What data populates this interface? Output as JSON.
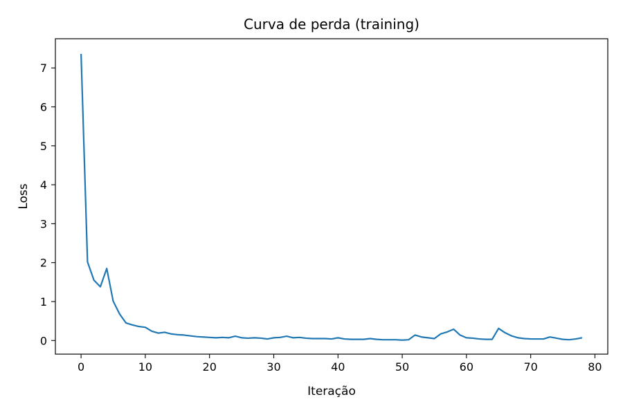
{
  "chart_data": {
    "type": "line",
    "title": "Curva de perda (training)",
    "xlabel": "Iteração",
    "ylabel": "Loss",
    "xlim": [
      -4,
      82
    ],
    "ylim": [
      -0.35,
      7.75
    ],
    "xticks": [
      0,
      10,
      20,
      30,
      40,
      50,
      60,
      70,
      80
    ],
    "yticks": [
      0,
      1,
      2,
      3,
      4,
      5,
      6,
      7
    ],
    "grid": false,
    "legend": "none",
    "series": [
      {
        "color": "#1f77b4",
        "x": [
          0,
          1,
          2,
          3,
          4,
          5,
          6,
          7,
          8,
          9,
          10,
          11,
          12,
          13,
          14,
          15,
          16,
          17,
          18,
          19,
          20,
          21,
          22,
          23,
          24,
          25,
          26,
          27,
          28,
          29,
          30,
          31,
          32,
          33,
          34,
          35,
          36,
          37,
          38,
          39,
          40,
          41,
          42,
          43,
          44,
          45,
          46,
          47,
          48,
          49,
          50,
          51,
          52,
          53,
          54,
          55,
          56,
          57,
          58,
          59,
          60,
          61,
          62,
          63,
          64,
          65,
          66,
          67,
          68,
          69,
          70,
          71,
          72,
          73,
          74,
          75,
          76,
          77,
          78
        ],
        "y": [
          7.36,
          2.02,
          1.55,
          1.38,
          1.85,
          1.01,
          0.68,
          0.45,
          0.4,
          0.36,
          0.34,
          0.24,
          0.19,
          0.21,
          0.17,
          0.15,
          0.14,
          0.12,
          0.1,
          0.09,
          0.08,
          0.07,
          0.08,
          0.07,
          0.11,
          0.07,
          0.06,
          0.07,
          0.06,
          0.04,
          0.07,
          0.08,
          0.11,
          0.07,
          0.08,
          0.06,
          0.05,
          0.05,
          0.05,
          0.04,
          0.07,
          0.04,
          0.03,
          0.03,
          0.03,
          0.05,
          0.03,
          0.02,
          0.02,
          0.02,
          0.01,
          0.02,
          0.14,
          0.09,
          0.07,
          0.05,
          0.17,
          0.22,
          0.29,
          0.14,
          0.07,
          0.06,
          0.04,
          0.03,
          0.03,
          0.31,
          0.2,
          0.12,
          0.07,
          0.05,
          0.04,
          0.04,
          0.04,
          0.09,
          0.06,
          0.03,
          0.02,
          0.04,
          0.07
        ]
      }
    ]
  }
}
